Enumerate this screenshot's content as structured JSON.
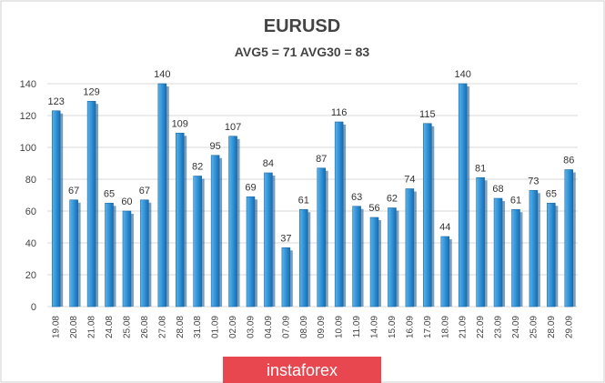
{
  "chart_data": {
    "type": "bar",
    "title": "EURUSD",
    "subtitle": "AVG5 = 71 AVG30 = 83",
    "xlabel": "",
    "ylabel": "",
    "ylim": [
      0,
      140
    ],
    "yticks": [
      0,
      20,
      40,
      60,
      80,
      100,
      120,
      140
    ],
    "grid": true,
    "legend": "none",
    "bar_color": "#2d8fd5",
    "categories": [
      "19.08",
      "20.08",
      "21.08",
      "24.08",
      "25.08",
      "26.08",
      "27.08",
      "28.08",
      "31.08",
      "01.09",
      "02.09",
      "03.09",
      "04.09",
      "07.09",
      "08.09",
      "09.09",
      "10.09",
      "11.09",
      "14.09",
      "15.09",
      "16.09",
      "17.09",
      "18.09",
      "21.09",
      "22.09",
      "23.09",
      "24.09",
      "25.09",
      "28.09",
      "29.09"
    ],
    "values": [
      123,
      67,
      129,
      65,
      60,
      67,
      140,
      109,
      82,
      95,
      107,
      69,
      84,
      37,
      61,
      87,
      116,
      63,
      56,
      62,
      74,
      115,
      44,
      140,
      81,
      68,
      61,
      73,
      65,
      86
    ]
  },
  "watermark": {
    "text": "instaforex",
    "color": "#e8474f"
  }
}
